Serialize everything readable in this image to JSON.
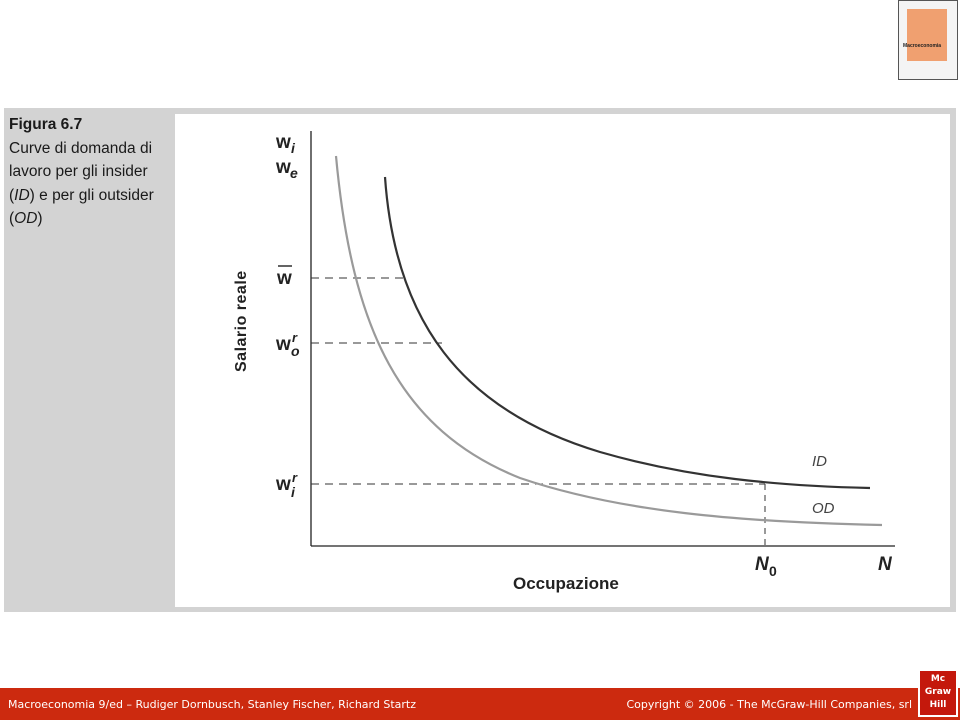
{
  "caption": {
    "figure_label": "Figura 6.7",
    "text_1": "Curve di domanda di lavoro per gli insider (",
    "abbr_insider": "ID",
    "text_2": ") e per gli outsider (",
    "abbr_outsider": "OD",
    "text_3": ")"
  },
  "footer": {
    "book": "Macroeconomia 9/ed – Rudiger Dornbusch, Stanley Fischer, Richard Startz",
    "copyright": "Copyright © 2006 - The McGraw-Hill Companies, srl"
  },
  "logo": {
    "line1": "Mc",
    "line2": "Graw",
    "line3": "Hill"
  },
  "book_cover": {
    "title": "Macroeconomia"
  },
  "diagram": {
    "y_axis_label": "Salario reale",
    "x_axis_label": "Occupazione",
    "labels": {
      "wi_top": {
        "base": "w",
        "sub": "i"
      },
      "we": {
        "base": "w",
        "sub": "e"
      },
      "wbar": "w",
      "wor": {
        "base": "w",
        "sub": "o",
        "sup": "r"
      },
      "wir": {
        "base": "w",
        "sub": "i",
        "sup": "r"
      },
      "n0": {
        "base": "N",
        "sub": "0"
      },
      "n": "N"
    },
    "curves": {
      "id": {
        "label": "ID",
        "color": "#333333"
      },
      "od": {
        "label": "OD",
        "color": "#999999"
      }
    }
  }
}
